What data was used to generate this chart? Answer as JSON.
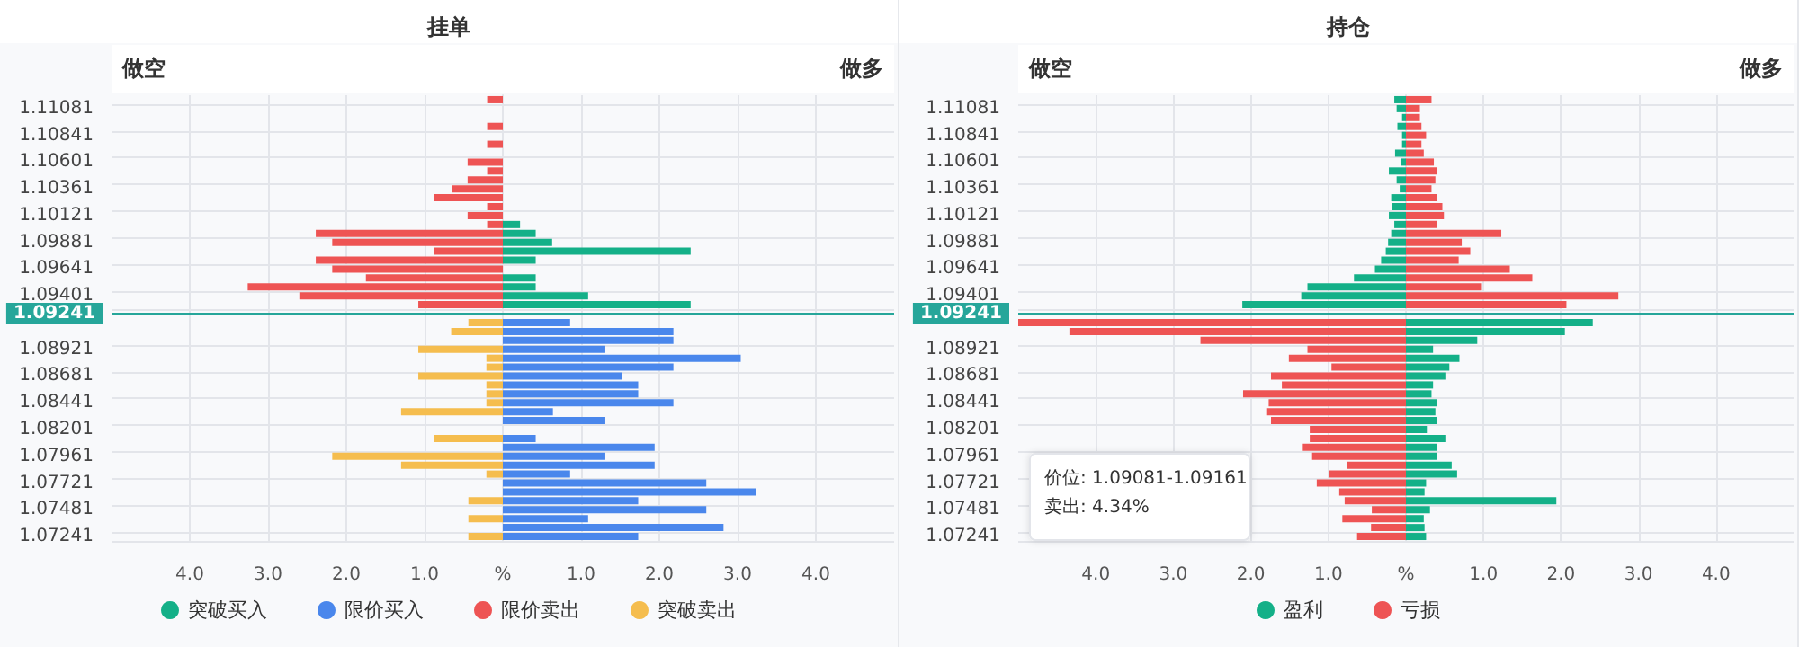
{
  "chart_data": [
    {
      "type": "bar",
      "orientation": "horizontal",
      "stacked": true,
      "title": "挂单",
      "annotations": [
        "做空",
        "做多"
      ],
      "categories": [
        null,
        "1.11081",
        null,
        null,
        "1.10841",
        null,
        null,
        "1.10601",
        null,
        null,
        "1.10361",
        null,
        null,
        "1.10121",
        null,
        null,
        "1.09881",
        null,
        null,
        "1.09641",
        null,
        null,
        "1.09401",
        null,
        "1.09241",
        null,
        null,
        null,
        "1.08921",
        null,
        null,
        "1.08681",
        null,
        null,
        "1.08441",
        null,
        null,
        "1.08201",
        null,
        null,
        "1.07961",
        null,
        null,
        "1.07721",
        null,
        null,
        "1.07481",
        null,
        null,
        "1.07241"
      ],
      "series": [
        {
          "name": "突破买入",
          "color": "#14b088",
          "values": [
            null,
            null,
            null,
            null,
            null,
            null,
            null,
            null,
            null,
            null,
            null,
            null,
            null,
            null,
            0.22,
            0.42,
            0.63,
            2.4,
            0.42,
            null,
            0.42,
            0.42,
            1.09,
            2.4,
            null,
            null,
            null,
            null,
            null,
            null,
            null,
            null,
            null,
            null,
            null,
            null,
            null,
            null,
            null,
            null,
            null,
            null,
            null,
            null,
            null,
            null,
            null,
            null,
            null,
            null
          ]
        },
        {
          "name": "限价买入",
          "color": "#4a87ec",
          "values": [
            null,
            null,
            null,
            null,
            null,
            null,
            null,
            null,
            null,
            null,
            null,
            null,
            null,
            null,
            null,
            null,
            null,
            null,
            null,
            null,
            null,
            null,
            null,
            null,
            null,
            0.86,
            2.18,
            2.18,
            1.31,
            3.04,
            2.18,
            1.52,
            1.73,
            1.73,
            2.18,
            0.64,
            1.31,
            null,
            0.42,
            1.94,
            1.31,
            1.94,
            0.86,
            2.6,
            3.24,
            1.73,
            2.6,
            1.09,
            2.82,
            1.73
          ]
        },
        {
          "name": "限价卖出",
          "color": "#ee5454",
          "values": [
            -0.2,
            null,
            null,
            -0.2,
            null,
            -0.2,
            null,
            -0.45,
            -0.2,
            -0.45,
            -0.65,
            -0.88,
            -0.2,
            -0.45,
            -0.2,
            -2.39,
            -2.18,
            -0.88,
            -2.39,
            -2.18,
            -1.75,
            -3.26,
            -2.6,
            -1.08,
            null,
            null,
            null,
            null,
            null,
            null,
            null,
            null,
            null,
            null,
            null,
            null,
            null,
            null,
            null,
            null,
            null,
            null,
            null,
            null,
            null,
            null,
            null,
            null,
            null,
            null
          ]
        },
        {
          "name": "突破卖出",
          "color": "#f5bd4e",
          "values": [
            null,
            null,
            null,
            null,
            null,
            null,
            null,
            null,
            null,
            null,
            null,
            null,
            null,
            null,
            null,
            null,
            null,
            null,
            null,
            null,
            null,
            null,
            null,
            null,
            null,
            -0.44,
            -0.66,
            null,
            -1.08,
            -0.21,
            -0.21,
            -1.08,
            -0.21,
            -0.21,
            -0.21,
            -1.3,
            null,
            null,
            -0.88,
            null,
            -2.18,
            -1.3,
            -0.21,
            null,
            null,
            -0.44,
            null,
            -0.44,
            null,
            -0.44
          ]
        }
      ],
      "xlim": [
        -5,
        5
      ],
      "xticks": [
        {
          "value": -4,
          "label": "4.0"
        },
        {
          "value": -3,
          "label": "3.0"
        },
        {
          "value": -2,
          "label": "2.0"
        },
        {
          "value": -1,
          "label": "1.0"
        },
        {
          "value": 0,
          "label": "%"
        },
        {
          "value": 1,
          "label": "1.0"
        },
        {
          "value": 2,
          "label": "2.0"
        },
        {
          "value": 3,
          "label": "3.0"
        },
        {
          "value": 4,
          "label": "4.0"
        }
      ],
      "ref_lines": [
        {
          "axis": "y",
          "value": "1.09241",
          "color": "#26a69a"
        }
      ],
      "grid": true,
      "legend": "bottom"
    },
    {
      "type": "bar",
      "orientation": "horizontal",
      "stacked": true,
      "title": "持仓",
      "annotations": [
        "做空",
        "做多",
        "价位: 1.09081-1.09161",
        "卖出: 4.34%"
      ],
      "categories": [
        null,
        "1.11081",
        null,
        null,
        "1.10841",
        null,
        null,
        "1.10601",
        null,
        null,
        "1.10361",
        null,
        null,
        "1.10121",
        null,
        null,
        "1.09881",
        null,
        null,
        "1.09641",
        null,
        null,
        "1.09401",
        null,
        "1.09241",
        null,
        null,
        null,
        "1.08921",
        null,
        null,
        "1.08681",
        null,
        null,
        "1.08441",
        null,
        null,
        "1.08201",
        null,
        null,
        "1.07961",
        null,
        null,
        "1.07721",
        null,
        null,
        "1.07481",
        null,
        null,
        "1.07241"
      ],
      "series": [
        {
          "name": "盈利",
          "color": "#14b088",
          "values": [
            -0.15,
            -0.12,
            -0.05,
            -0.11,
            -0.05,
            -0.05,
            -0.14,
            -0.07,
            -0.22,
            -0.12,
            -0.08,
            -0.19,
            -0.18,
            -0.22,
            -0.15,
            -0.19,
            -0.23,
            -0.26,
            -0.32,
            -0.4,
            -0.67,
            -1.27,
            -1.35,
            -2.11,
            null,
            2.41,
            2.05,
            0.92,
            0.35,
            0.69,
            0.56,
            0.52,
            0.35,
            0.33,
            0.4,
            0.38,
            0.4,
            0.27,
            0.52,
            0.4,
            0.4,
            0.59,
            0.66,
            0.26,
            0.24,
            1.94,
            0.31,
            0.23,
            0.24,
            0.26
          ]
        },
        {
          "name": "亏损",
          "color": "#ee5454",
          "values": [
            0.33,
            0.18,
            0.18,
            0.2,
            0.26,
            0.2,
            0.23,
            0.36,
            0.4,
            0.38,
            0.33,
            0.4,
            0.47,
            0.49,
            0.4,
            1.23,
            0.72,
            0.83,
            0.68,
            1.34,
            1.63,
            0.98,
            2.74,
            2.07,
            null,
            -5,
            -4.34,
            -2.65,
            -1.27,
            -1.51,
            -0.96,
            -1.74,
            -1.6,
            -2.1,
            -1.77,
            -1.79,
            -1.74,
            -1.24,
            -1.24,
            -1.33,
            -1.21,
            -0.76,
            -0.99,
            -1.15,
            -0.86,
            -0.79,
            -0.44,
            -0.82,
            -0.45,
            -0.63
          ]
        }
      ],
      "xlim": [
        -5,
        5
      ],
      "xticks": [
        {
          "value": -4,
          "label": "4.0"
        },
        {
          "value": -3,
          "label": "3.0"
        },
        {
          "value": -2,
          "label": "2.0"
        },
        {
          "value": -1,
          "label": "1.0"
        },
        {
          "value": 0,
          "label": "%"
        },
        {
          "value": 1,
          "label": "1.0"
        },
        {
          "value": 2,
          "label": "2.0"
        },
        {
          "value": 3,
          "label": "3.0"
        },
        {
          "value": 4,
          "label": "4.0"
        }
      ],
      "ref_lines": [
        {
          "axis": "y",
          "value": "1.09241",
          "color": "#26a69a"
        }
      ],
      "grid": true,
      "legend": "bottom"
    }
  ]
}
